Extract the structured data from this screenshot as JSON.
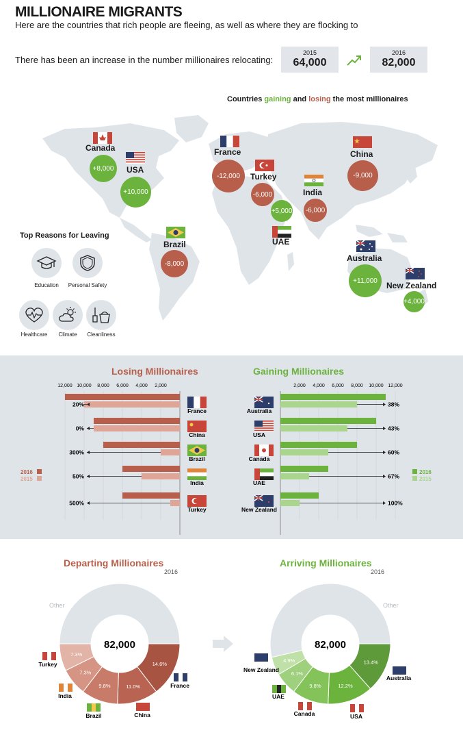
{
  "header": {
    "title": "MILLIONAIRE MIGRANTS",
    "subtitle": "Here are the countries that rich people are fleeing, as well as where they are flocking to",
    "increase_text": "There has been an increase in the number millionaires relocating:",
    "year_a": "2015",
    "value_a": "64,000",
    "year_b": "2016",
    "value_b": "82,000"
  },
  "map": {
    "legend_pre": "Countries ",
    "legend_gain": "gaining",
    "legend_mid": " and ",
    "legend_lose": "losing",
    "legend_post": " the most millionaires",
    "countries": [
      {
        "name": "Canada",
        "value": "+8,000",
        "type": "gain"
      },
      {
        "name": "USA",
        "value": "+10,000",
        "type": "gain"
      },
      {
        "name": "France",
        "value": "-12,000",
        "type": "lose"
      },
      {
        "name": "Turkey",
        "value": "-6,000",
        "type": "lose"
      },
      {
        "name": "UAE",
        "value": "+5,000",
        "type": "gain"
      },
      {
        "name": "India",
        "value": "-6,000",
        "type": "lose"
      },
      {
        "name": "China",
        "value": "-9,000",
        "type": "lose"
      },
      {
        "name": "Brazil",
        "value": "-8,000",
        "type": "lose"
      },
      {
        "name": "Australia",
        "value": "+11,000",
        "type": "gain"
      },
      {
        "name": "New Zealand",
        "value": "+4,000",
        "type": "gain"
      }
    ],
    "colors": {
      "gain": "#6cb33e",
      "lose": "#b75f4b",
      "land": "#dfe4e9"
    }
  },
  "reasons": {
    "title": "Top Reasons for Leaving",
    "items": [
      {
        "label": "Education",
        "icon": "graduation-cap-icon"
      },
      {
        "label": "Personal Safety",
        "icon": "shield-icon"
      },
      {
        "label": "Healthcare",
        "icon": "heart-pulse-icon"
      },
      {
        "label": "Climate",
        "icon": "cloud-sun-icon"
      },
      {
        "label": "Cleanliness",
        "icon": "cleaning-bucket-icon"
      }
    ]
  },
  "chart_data": [
    {
      "type": "bar",
      "title": "Losing Millionaires",
      "categories": [
        "France",
        "China",
        "Brazil",
        "India",
        "Turkey"
      ],
      "series": [
        {
          "name": "2016",
          "values": [
            12000,
            9000,
            8000,
            6000,
            6000
          ]
        },
        {
          "name": "2015",
          "values": [
            10000,
            9000,
            2000,
            4000,
            1000
          ]
        }
      ],
      "change_labels": [
        "20%",
        "0%",
        "300%",
        "50%",
        "500%"
      ],
      "ticks": [
        "12,000",
        "10,000",
        "8,000",
        "6,000",
        "4,000",
        "2,000"
      ],
      "xlim": [
        0,
        12000
      ],
      "colors": {
        "2016": "#b75f4b",
        "2015": "#dfa597"
      },
      "legend": "left"
    },
    {
      "type": "bar",
      "title": "Gaining Millionaires",
      "categories": [
        "Australia",
        "USA",
        "Canada",
        "UAE",
        "New Zealand"
      ],
      "series": [
        {
          "name": "2016",
          "values": [
            11000,
            10000,
            8000,
            5000,
            4000
          ]
        },
        {
          "name": "2015",
          "values": [
            8000,
            7000,
            5000,
            3000,
            2000
          ]
        }
      ],
      "change_labels": [
        "38%",
        "43%",
        "60%",
        "67%",
        "100%"
      ],
      "ticks": [
        "2,000",
        "4,000",
        "6,000",
        "8,000",
        "10,000",
        "12,000"
      ],
      "xlim": [
        0,
        12000
      ],
      "colors": {
        "2016": "#6cb33e",
        "2015": "#a9d58c"
      },
      "legend": "right"
    },
    {
      "type": "pie",
      "title": "Departing Millionaires",
      "subtitle": "2016",
      "center_label": "82,000",
      "slices": [
        {
          "label": "France",
          "value": 14.6,
          "text": "14.6%",
          "color": "#a85442"
        },
        {
          "label": "China",
          "value": 11.0,
          "text": "11.0%",
          "color": "#b96452"
        },
        {
          "label": "Brazil",
          "value": 9.8,
          "text": "9.8%",
          "color": "#c87b68"
        },
        {
          "label": "India",
          "value": 7.3,
          "text": "7.3%",
          "color": "#d59484"
        },
        {
          "label": "Turkey",
          "value": 7.3,
          "text": "7.3%",
          "color": "#e2b4a8"
        },
        {
          "label": "Other",
          "value": 50.0,
          "text": "",
          "color": "#dfe4e9"
        }
      ]
    },
    {
      "type": "pie",
      "title": "Arriving Millionaires",
      "subtitle": "2016",
      "center_label": "82,000",
      "slices": [
        {
          "label": "Australia",
          "value": 13.4,
          "text": "13.4%",
          "color": "#5e9a3a"
        },
        {
          "label": "USA",
          "value": 12.2,
          "text": "12.2%",
          "color": "#6cb33e"
        },
        {
          "label": "Canada",
          "value": 9.8,
          "text": "9.8%",
          "color": "#84c35a"
        },
        {
          "label": "UAE",
          "value": 6.1,
          "text": "6.1%",
          "color": "#9fd07d"
        },
        {
          "label": "New Zealand",
          "value": 4.9,
          "text": "4.9%",
          "color": "#bfe0a6"
        },
        {
          "label": "Other",
          "value": 53.6,
          "text": "",
          "color": "#dfe4e9"
        }
      ]
    }
  ]
}
